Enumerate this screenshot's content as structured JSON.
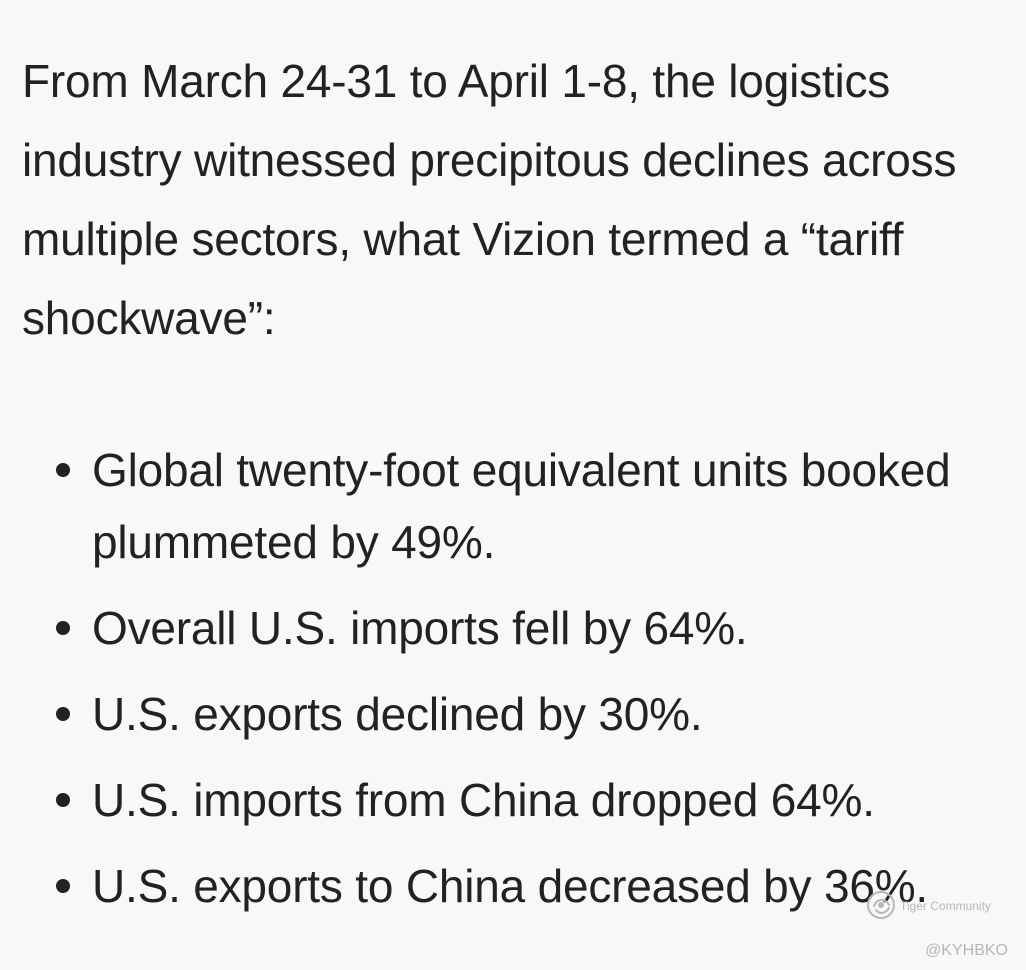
{
  "document": {
    "intro": "From March 24-31 to April 1-8, the logistics industry witnessed precipitous declines across multiple sectors, what Vizion termed a “tariff shockwave”:",
    "bullets": [
      "Global twenty-foot equivalent units booked plummeted by 49%.",
      "Overall U.S. imports fell by 64%.",
      "U.S. exports declined by 30%.",
      "U.S. imports from China dropped 64%.",
      "U.S. exports to China decreased by 36%."
    ]
  },
  "watermark": {
    "icon": "tiger-community-logo-icon",
    "brand": "Tiger Community",
    "handle": "@KYHBKO"
  },
  "colors": {
    "background": "#f8f8f8",
    "text": "#222222",
    "watermark": "#b7b7b7"
  }
}
